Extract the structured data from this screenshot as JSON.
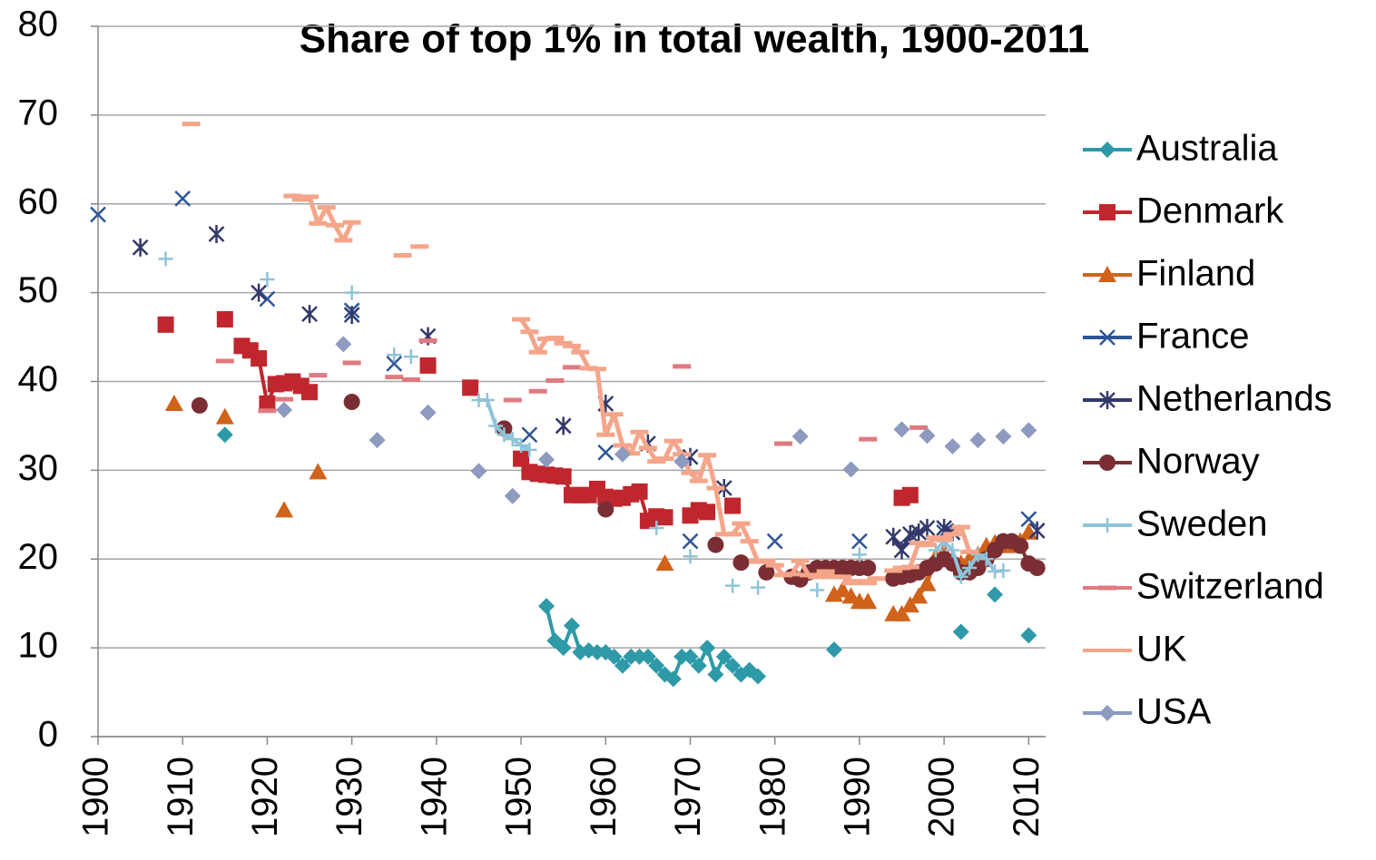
{
  "chart_data": {
    "type": "line",
    "title": "Share of top 1% in total wealth, 1900-2011",
    "xlim": [
      1900,
      2012
    ],
    "xticks": [
      1900,
      1910,
      1920,
      1930,
      1940,
      1950,
      1960,
      1970,
      1980,
      1990,
      2000,
      2010
    ],
    "ylim": [
      0,
      80
    ],
    "yticks": [
      0,
      10,
      20,
      30,
      40,
      50,
      60,
      70,
      80
    ],
    "grid": true,
    "legend": "right",
    "series": [
      {
        "name": "Australia",
        "color": "#2e9aa8",
        "marker": "diamond",
        "x": [
          1915,
          1916,
          1953,
          1954,
          1955,
          1956,
          1957,
          1958,
          1959,
          1960,
          1961,
          1962,
          1963,
          1964,
          1965,
          1966,
          1967,
          1968,
          1969,
          1970,
          1971,
          1972,
          1973,
          1974,
          1975,
          1976,
          1977,
          1978,
          1979,
          1987,
          1988,
          2002,
          2003,
          2006,
          2007,
          2010
        ],
        "values": [
          34,
          null,
          14.7,
          10.8,
          10,
          12.5,
          9.5,
          9.7,
          9.5,
          9.5,
          9,
          8,
          9,
          9,
          9,
          8,
          7,
          6.5,
          9,
          9,
          8,
          10,
          7,
          9,
          8,
          7,
          7.5,
          6.8,
          null,
          9.8,
          null,
          11.8,
          null,
          16,
          null,
          11.4
        ]
      },
      {
        "name": "Denmark",
        "color": "#c0262d",
        "marker": "square",
        "x": [
          1908,
          1909,
          1915,
          1916,
          1917,
          1918,
          1919,
          1920,
          1921,
          1922,
          1923,
          1924,
          1925,
          1926,
          1939,
          1940,
          1944,
          1945,
          1950,
          1951,
          1952,
          1953,
          1954,
          1955,
          1956,
          1957,
          1958,
          1959,
          1960,
          1961,
          1962,
          1963,
          1964,
          1965,
          1966,
          1967,
          1968,
          1970,
          1971,
          1972,
          1973,
          1975,
          1976,
          1995,
          1996
        ],
        "values": [
          46.4,
          null,
          47,
          null,
          44,
          43.5,
          42.6,
          37.5,
          39.7,
          39.8,
          40,
          39.5,
          38.8,
          null,
          41.8,
          null,
          39.3,
          null,
          31.3,
          29.8,
          29.6,
          29.5,
          29.4,
          29.3,
          27.2,
          27.2,
          27.2,
          27.9,
          27,
          26.8,
          26.9,
          27.3,
          27.6,
          24.3,
          24.8,
          24.7,
          null,
          24.9,
          25.5,
          25.3,
          null,
          26,
          null,
          26.9,
          27.2
        ]
      },
      {
        "name": "Finland",
        "color": "#d0621a",
        "marker": "triangle",
        "x": [
          1909,
          1910,
          1915,
          1916,
          1922,
          1923,
          1926,
          1927,
          1967,
          1968,
          1987,
          1988,
          1989,
          1990,
          1991,
          1992,
          1994,
          1995,
          1996,
          1997,
          1998,
          1999,
          2000,
          2001,
          2002,
          2003,
          2004,
          2005,
          2006,
          2007,
          2008,
          2009,
          2010
        ],
        "values": [
          37.5,
          null,
          36,
          null,
          25.5,
          null,
          29.8,
          null,
          19.5,
          null,
          16,
          16.5,
          15.8,
          15.2,
          15.2,
          null,
          13.8,
          13.8,
          14.8,
          15.8,
          17.2,
          20.2,
          20.8,
          20,
          19.5,
          20,
          20.5,
          21.5,
          21.8,
          21.5,
          21.5,
          22,
          23
        ]
      },
      {
        "name": "France",
        "color": "#2f5597",
        "marker": "x",
        "x": [
          1900,
          1901,
          1910,
          1911,
          1920,
          1921,
          1930,
          1931,
          1935,
          1936,
          1951,
          1952,
          1960,
          1961,
          1970,
          1971,
          1980,
          1981,
          1990,
          1991,
          2000,
          2001,
          2010
        ],
        "values": [
          58.8,
          null,
          60.6,
          null,
          49.3,
          null,
          48,
          null,
          42,
          null,
          34,
          null,
          32,
          null,
          22,
          null,
          22,
          null,
          22,
          null,
          23,
          null,
          24.5
        ]
      },
      {
        "name": "Netherlands",
        "color": "#33396b",
        "marker": "asterisk",
        "x": [
          1905,
          1906,
          1914,
          1915,
          1919,
          1920,
          1925,
          1926,
          1930,
          1931,
          1939,
          1940,
          1955,
          1956,
          1960,
          1961,
          1965,
          1966,
          1970,
          1971,
          1974,
          1975,
          1994,
          1995,
          1996,
          1997,
          1998,
          1999,
          2000,
          2001,
          2002,
          2011
        ],
        "values": [
          55.1,
          null,
          56.6,
          null,
          50,
          null,
          47.6,
          null,
          47.5,
          null,
          45.1,
          null,
          35,
          null,
          37.5,
          null,
          33,
          null,
          31.5,
          null,
          28,
          null,
          22.5,
          21,
          22.8,
          23,
          23.5,
          null,
          23.5,
          23,
          null,
          23.2
        ]
      },
      {
        "name": "Norway",
        "color": "#7a2e33",
        "marker": "circle",
        "x": [
          1912,
          1913,
          1930,
          1931,
          1948,
          1949,
          1960,
          1961,
          1973,
          1974,
          1976,
          1977,
          1979,
          1980,
          1982,
          1983,
          1984,
          1985,
          1986,
          1987,
          1988,
          1989,
          1990,
          1991,
          1992,
          1994,
          1995,
          1996,
          1997,
          1998,
          1999,
          2000,
          2001,
          2002,
          2003,
          2004,
          2005,
          2006,
          2007,
          2008,
          2009,
          2010,
          2011
        ],
        "values": [
          37.3,
          null,
          37.7,
          null,
          34.7,
          null,
          25.6,
          null,
          21.6,
          null,
          19.6,
          null,
          18.5,
          null,
          18,
          17.7,
          18.5,
          19,
          19,
          19,
          19,
          19,
          19,
          19,
          null,
          17.8,
          18,
          18.2,
          18.5,
          19,
          19.5,
          20,
          19.5,
          18.5,
          18.5,
          19,
          20,
          21,
          22,
          22,
          21.5,
          19.5,
          19
        ]
      },
      {
        "name": "Sweden",
        "color": "#8fc3d8",
        "marker": "plus",
        "x": [
          1908,
          1909,
          1920,
          1921,
          1930,
          1931,
          1935,
          1936,
          1937,
          1938,
          1945,
          1946,
          1947,
          1948,
          1949,
          1950,
          1951,
          1952,
          1966,
          1967,
          1970,
          1971,
          1975,
          1976,
          1978,
          1979,
          1985,
          1986,
          1990,
          1991,
          1999,
          2000,
          2001,
          2002,
          2003,
          2004,
          2005,
          2006,
          2007
        ],
        "values": [
          53.8,
          null,
          51.5,
          null,
          50,
          null,
          43,
          null,
          42.8,
          null,
          37.9,
          37.9,
          35,
          34,
          33.5,
          32.8,
          32.3,
          null,
          23.5,
          null,
          20.3,
          null,
          17,
          null,
          16.8,
          null,
          16.5,
          null,
          20.5,
          null,
          21,
          22,
          21,
          18,
          19,
          20.5,
          20,
          18.6,
          18.7
        ]
      },
      {
        "name": "Switzerland",
        "color": "#e07a80",
        "marker": "dash",
        "x": [
          1915,
          1916,
          1920,
          1921,
          1922,
          1923,
          1926,
          1927,
          1930,
          1931,
          1935,
          1936,
          1937,
          1938,
          1939,
          1940,
          1949,
          1950,
          1952,
          1953,
          1954,
          1955,
          1956,
          1957,
          1969,
          1970,
          1981,
          1982,
          1991,
          1992,
          1997
        ],
        "values": [
          42.3,
          null,
          36.7,
          null,
          38,
          null,
          40.7,
          null,
          42.1,
          null,
          40.5,
          null,
          40.2,
          null,
          44.6,
          null,
          37.9,
          null,
          38.9,
          null,
          40.1,
          null,
          41.6,
          null,
          41.7,
          null,
          33,
          null,
          33.5,
          null,
          34.8
        ]
      },
      {
        "name": "UK",
        "color": "#f4a58a",
        "marker": "dash",
        "x": [
          1911,
          1912,
          1923,
          1924,
          1925,
          1926,
          1927,
          1928,
          1929,
          1930,
          1931,
          1936,
          1937,
          1938,
          1939,
          1950,
          1951,
          1952,
          1953,
          1954,
          1955,
          1956,
          1957,
          1958,
          1959,
          1960,
          1961,
          1962,
          1963,
          1964,
          1965,
          1966,
          1967,
          1968,
          1969,
          1970,
          1971,
          1972,
          1973,
          1974,
          1975,
          1976,
          1977,
          1978,
          1979,
          1980,
          1981,
          1982,
          1983,
          1984,
          1985,
          1986,
          1987,
          1988,
          1989,
          1990,
          1991,
          1992,
          1993,
          1994,
          1995,
          1996,
          1997,
          1998,
          1999,
          2000,
          2001,
          2002,
          2003
        ],
        "values": [
          69,
          null,
          60.9,
          60.5,
          60.8,
          57.8,
          59.6,
          57.6,
          55.9,
          57.9,
          null,
          54.2,
          null,
          55.2,
          null,
          47,
          45.6,
          43.3,
          44.8,
          44.9,
          44.3,
          44,
          43.3,
          41.5,
          41.4,
          34,
          36.3,
          32.8,
          31.9,
          34.3,
          32.5,
          31,
          31.3,
          33.3,
          31.8,
          29.7,
          28.8,
          31.7,
          28,
          22.8,
          22.8,
          24,
          22,
          19.7,
          19.8,
          19.3,
          18.2,
          18.3,
          19.8,
          18.2,
          18,
          18.6,
          18,
          18,
          17.3,
          17.5,
          17.3,
          17.8,
          null,
          18.7,
          19,
          19.1,
          21.8,
          21.6,
          22.4,
          22.2,
          22.8,
          23.6,
          20.8
        ]
      },
      {
        "name": "USA",
        "color": "#8e9ac0",
        "marker": "diamond",
        "x": [
          1922,
          1923,
          1929,
          1930,
          1933,
          1934,
          1939,
          1940,
          1945,
          1946,
          1949,
          1950,
          1953,
          1954,
          1962,
          1963,
          1969,
          1970,
          1983,
          1984,
          1989,
          1990,
          1995,
          1996,
          1998,
          1999,
          2001,
          2002,
          2004,
          2005,
          2007,
          2008,
          2010
        ],
        "values": [
          36.8,
          null,
          44.2,
          null,
          33.4,
          null,
          36.5,
          null,
          29.9,
          null,
          27.1,
          null,
          31.2,
          null,
          31.8,
          null,
          31,
          null,
          33.8,
          null,
          30.1,
          null,
          34.6,
          null,
          33.9,
          null,
          32.7,
          null,
          33.4,
          null,
          33.8,
          null,
          34.5
        ]
      }
    ]
  }
}
